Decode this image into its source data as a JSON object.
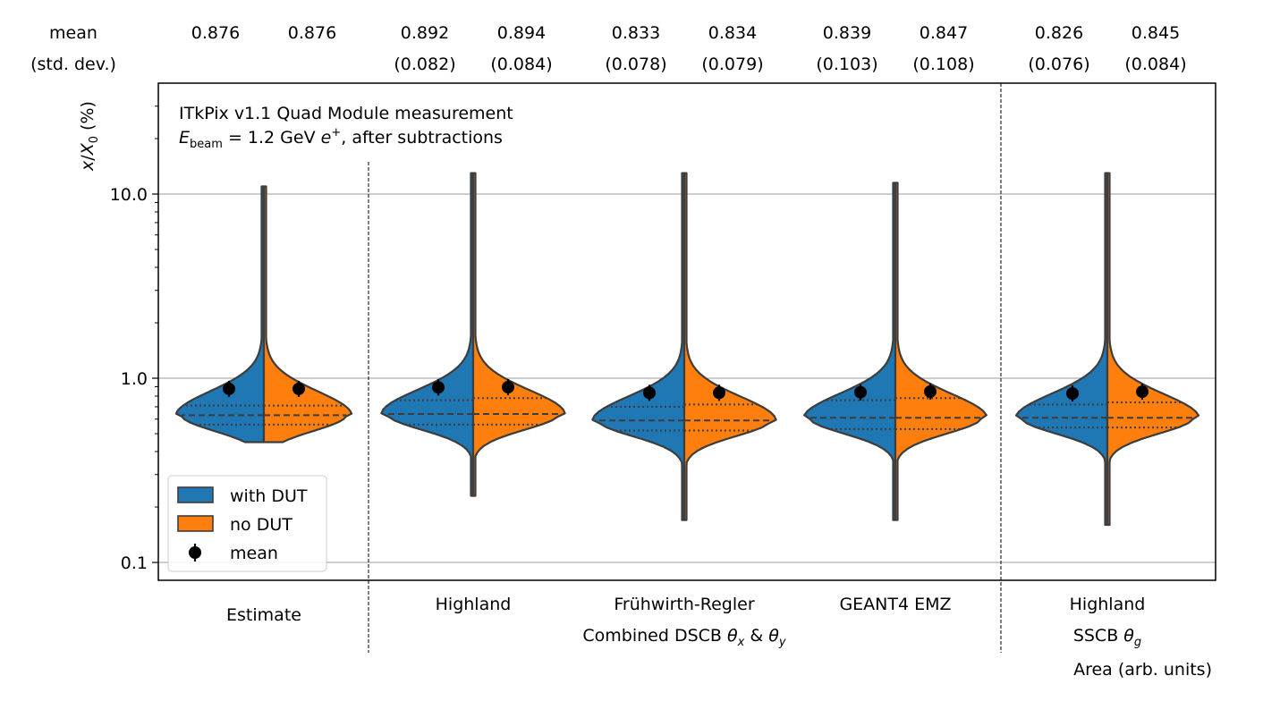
{
  "chart_data": {
    "type": "violin",
    "title": "ITkPix v1.1 Quad Module measurement",
    "subtitle_parts": {
      "prefix": "E",
      "sub": "beam",
      "rest": " = 1.2 GeV ",
      "particle": "e",
      "sup": "+",
      "suffix": ", after subtractions"
    },
    "ylabel_parts": {
      "x": "x",
      "slash": "/",
      "X": "X",
      "sub": "0",
      "unit": " (%)"
    },
    "yscale": "log",
    "ylim": [
      0.08,
      40
    ],
    "yticks": [
      {
        "value": 0.1,
        "label": "0.1"
      },
      {
        "value": 1.0,
        "label": "1.0"
      },
      {
        "value": 10.0,
        "label": "10.0"
      }
    ],
    "grid_y": true,
    "summary_header": {
      "mean_label": "mean",
      "std_label": "(std. dev.)"
    },
    "categories": [
      {
        "label": "Estimate",
        "with_dut": {
          "mean": "0.876",
          "std": "",
          "mean_value": 0.876,
          "median": 0.63,
          "q1": 0.56,
          "q3": 0.71,
          "min": 0.45,
          "max": 11.0
        },
        "no_dut": {
          "mean": "0.876",
          "std": "",
          "mean_value": 0.876,
          "median": 0.63,
          "q1": 0.56,
          "q3": 0.71,
          "min": 0.45,
          "max": 11.0
        }
      },
      {
        "label": "Highland",
        "with_dut": {
          "mean": "0.892",
          "std": "(0.082)",
          "mean_value": 0.892,
          "median": 0.64,
          "q1": 0.56,
          "q3": 0.76,
          "min": 0.23,
          "max": 13.0
        },
        "no_dut": {
          "mean": "0.894",
          "std": "(0.084)",
          "mean_value": 0.894,
          "median": 0.64,
          "q1": 0.56,
          "q3": 0.78,
          "min": 0.23,
          "max": 13.0
        }
      },
      {
        "label": "Frühwirth-Regler",
        "with_dut": {
          "mean": "0.833",
          "std": "(0.078)",
          "mean_value": 0.833,
          "median": 0.59,
          "q1": 0.52,
          "q3": 0.7,
          "min": 0.17,
          "max": 13.0
        },
        "no_dut": {
          "mean": "0.834",
          "std": "(0.079)",
          "mean_value": 0.834,
          "median": 0.59,
          "q1": 0.52,
          "q3": 0.72,
          "min": 0.17,
          "max": 13.0
        }
      },
      {
        "label": "GEANT4 EMZ",
        "with_dut": {
          "mean": "0.839",
          "std": "(0.103)",
          "mean_value": 0.839,
          "median": 0.61,
          "q1": 0.53,
          "q3": 0.76,
          "min": 0.17,
          "max": 11.5
        },
        "no_dut": {
          "mean": "0.847",
          "std": "(0.108)",
          "mean_value": 0.847,
          "median": 0.61,
          "q1": 0.53,
          "q3": 0.78,
          "min": 0.17,
          "max": 11.5
        }
      },
      {
        "label": "Highland",
        "with_dut": {
          "mean": "0.826",
          "std": "(0.076)",
          "mean_value": 0.826,
          "median": 0.61,
          "q1": 0.54,
          "q3": 0.72,
          "min": 0.16,
          "max": 13.0
        },
        "no_dut": {
          "mean": "0.845",
          "std": "(0.084)",
          "mean_value": 0.845,
          "median": 0.61,
          "q1": 0.54,
          "q3": 0.74,
          "min": 0.16,
          "max": 13.0
        }
      }
    ],
    "group_labels": {
      "combined_parts": {
        "prefix": "Combined DSCB ",
        "t1": "θ",
        "s1": "x",
        "mid": " & ",
        "t2": "θ",
        "s2": "y"
      },
      "sscb_parts": {
        "prefix": "SSCB ",
        "t": "θ",
        "s": "g"
      }
    },
    "xlabel": "Area (arb. units)",
    "legend": {
      "position": "lower-left",
      "entries": [
        {
          "label": "with DUT",
          "color": "#1f77b4",
          "kind": "patch"
        },
        {
          "label": "no DUT",
          "color": "#ff7f0e",
          "kind": "patch"
        },
        {
          "label": "mean",
          "color": "#000000",
          "kind": "marker"
        }
      ]
    },
    "colors": {
      "with_dut": "#1f77b4",
      "no_dut": "#ff7f0e",
      "edge": "#3d3d3d",
      "grid": "#b0b0b0"
    }
  }
}
